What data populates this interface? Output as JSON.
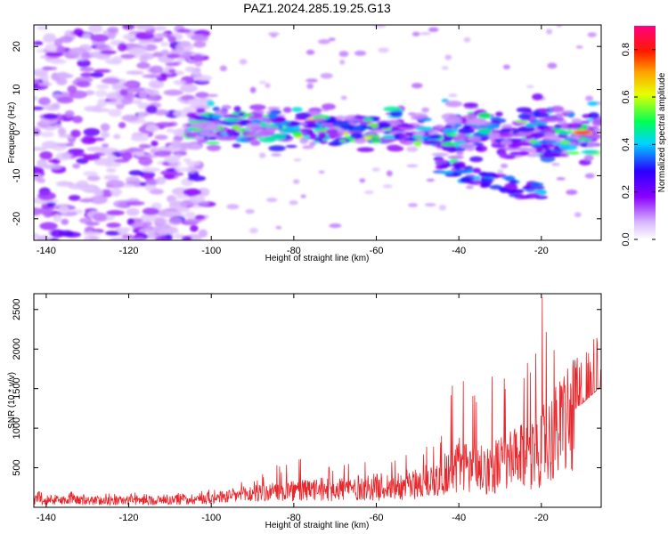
{
  "title": "PAZ1.2024.285.19.25.G13",
  "chart_data": [
    {
      "type": "heatmap",
      "title": "PAZ1.2024.285.19.25.G13",
      "xlabel": "Height of straight line (km)",
      "ylabel": "Frequency (Hz)",
      "xlim": [
        -143,
        -5.5
      ],
      "ylim": [
        -25,
        25
      ],
      "x_ticks": [
        -140,
        -120,
        -100,
        -80,
        -60,
        -40,
        -20
      ],
      "y_ticks": [
        -20,
        -10,
        0,
        10,
        20
      ],
      "colorbar": {
        "label": "Normalized spectral amplitude",
        "range": [
          0,
          0.9
        ],
        "ticks": [
          0.0,
          0.2,
          0.4,
          0.6,
          0.8
        ],
        "colormap": "rainbow (white→purple→blue→cyan→green→yellow→orange→red→magenta)"
      },
      "features": [
        {
          "description": "diffuse low-amplitude noise across all frequencies",
          "x_range": [
            -143,
            -100
          ],
          "amplitude": 0.1
        },
        {
          "description": "main band near 0 Hz",
          "x_range": [
            -105,
            -5.5
          ],
          "freq_center": 1,
          "amplitude_range": [
            0.2,
            0.6
          ]
        },
        {
          "description": "strongest peak",
          "x": -10,
          "frequency": 0,
          "amplitude": 0.85
        }
      ]
    },
    {
      "type": "line",
      "xlabel": "Height of straight line (km)",
      "ylabel": "SNR (10 * v/v)",
      "xlim": [
        -143,
        -5.5
      ],
      "ylim": [
        0,
        2700
      ],
      "x_ticks": [
        -140,
        -120,
        -100,
        -80,
        -60,
        -40,
        -20
      ],
      "y_ticks": [
        500,
        1000,
        1500,
        2000,
        2500
      ],
      "color": "#e8262b",
      "envelope": {
        "x": [
          -143,
          -130,
          -120,
          -110,
          -100,
          -90,
          -80,
          -70,
          -60,
          -50,
          -45,
          -40,
          -35,
          -30,
          -25,
          -20,
          -18,
          -15,
          -10,
          -5.5
        ],
        "y_max": [
          230,
          190,
          190,
          170,
          230,
          360,
          650,
          560,
          590,
          700,
          900,
          1900,
          1700,
          1650,
          1800,
          2700,
          2350,
          1700,
          1950,
          2200
        ],
        "y_typical": [
          130,
          110,
          110,
          120,
          150,
          220,
          260,
          300,
          330,
          380,
          470,
          700,
          600,
          700,
          800,
          1000,
          1100,
          1300,
          1550,
          1800
        ]
      }
    }
  ]
}
